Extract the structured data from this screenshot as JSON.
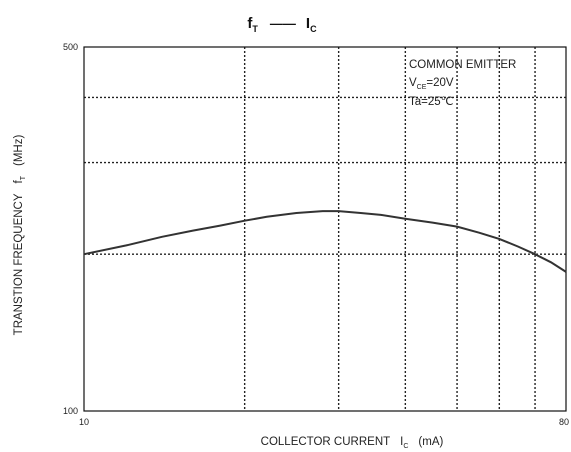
{
  "chart_data": {
    "type": "line",
    "title": {
      "y_symbol": "f",
      "y_sub": "T",
      "dash": "——",
      "x_symbol": "I",
      "x_sub": "C"
    },
    "xlabel": {
      "text": "COLLECTOR CURRENT",
      "symbol": "I",
      "sub": "C",
      "unit": "(mA)"
    },
    "ylabel": {
      "text": "TRANSTION FREQUENCY",
      "symbol": "f",
      "sub": "T",
      "unit": "(MHz)"
    },
    "x_scale": "log",
    "y_scale": "log",
    "xlim": [
      10,
      80
    ],
    "ylim": [
      100,
      500
    ],
    "x_tick_labels": [
      "10",
      "80"
    ],
    "y_tick_labels": [
      "500",
      "100"
    ],
    "x_gridlines": [
      20,
      30,
      40,
      50,
      60,
      70
    ],
    "y_gridlines": [
      200,
      300,
      400
    ],
    "annotation": {
      "line1": "COMMON EMITTER",
      "line2_main": "V",
      "line2_sub": "CE",
      "line2_rest": "=20V",
      "line3": "Ta=25℃"
    },
    "series": [
      {
        "x": [
          10,
          12,
          14,
          16,
          18,
          20,
          22,
          25,
          28,
          30,
          33,
          36,
          40,
          45,
          50,
          55,
          60,
          65,
          70,
          75,
          80
        ],
        "y": [
          200,
          208,
          216,
          222,
          227,
          232,
          236,
          240,
          242,
          242,
          240,
          238,
          234,
          230,
          226,
          220,
          214,
          207,
          200,
          193,
          185
        ]
      }
    ]
  }
}
